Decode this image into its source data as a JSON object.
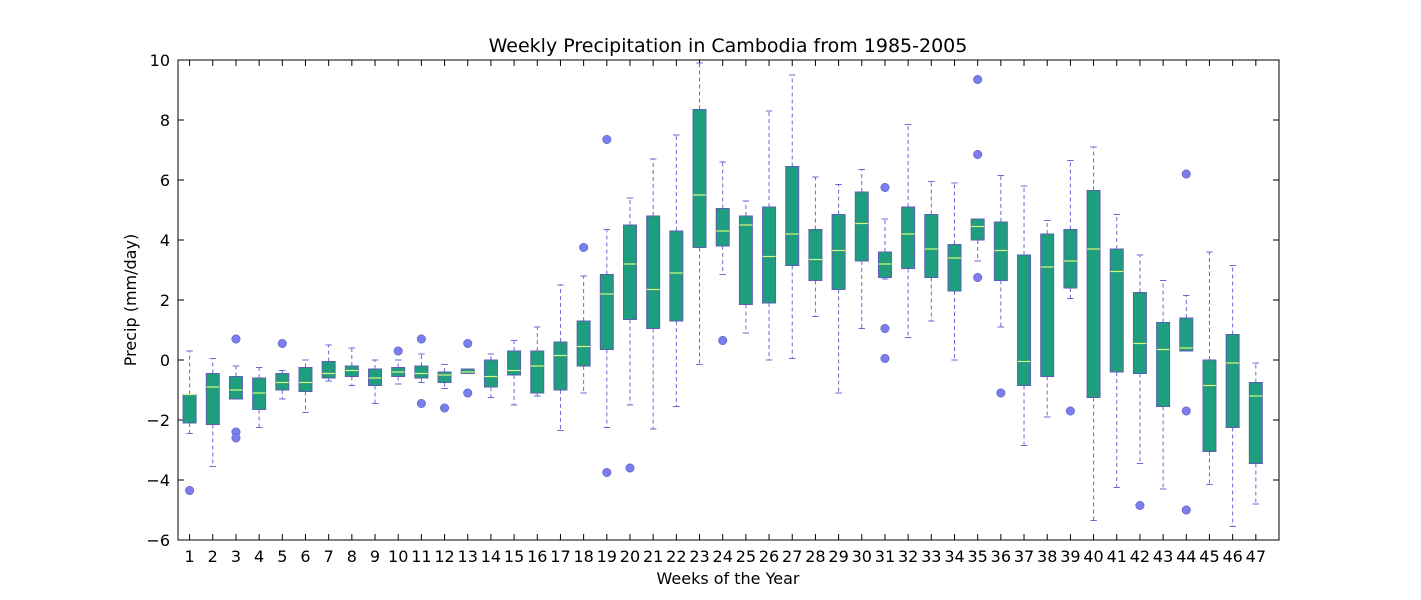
{
  "chart_data": {
    "type": "box",
    "title": "Weekly Precipitation in Cambodia from 1985-2005",
    "xlabel": "Weeks of the Year",
    "ylabel": "Precip (mm/day)",
    "ylim": [
      -6,
      10
    ],
    "yticks": [
      -6,
      -4,
      -2,
      0,
      2,
      4,
      6,
      8,
      10
    ],
    "grid": false,
    "colors": {
      "box_fill": "#1f9e7f",
      "box_edge": "#5b5fb3",
      "median": "#d9f77a",
      "whisker": "#6a6ad8",
      "outlier": "#7b7ef0"
    },
    "categories": [
      "1",
      "2",
      "3",
      "4",
      "5",
      "6",
      "7",
      "8",
      "9",
      "10",
      "11",
      "12",
      "13",
      "14",
      "15",
      "16",
      "17",
      "18",
      "19",
      "20",
      "21",
      "22",
      "23",
      "24",
      "25",
      "26",
      "27",
      "28",
      "29",
      "30",
      "31",
      "32",
      "33",
      "34",
      "35",
      "36",
      "37",
      "38",
      "39",
      "40",
      "41",
      "42",
      "43",
      "44",
      "45",
      "46",
      "47"
    ],
    "boxes": [
      {
        "whislo": -2.45,
        "q1": -2.1,
        "med": -1.15,
        "q3": -1.15,
        "whishi": 0.3,
        "fliers": [
          -4.35
        ]
      },
      {
        "whislo": -3.55,
        "q1": -2.15,
        "med": -0.9,
        "q3": -0.45,
        "whishi": 0.05,
        "fliers": []
      },
      {
        "whislo": -1.3,
        "q1": -1.3,
        "med": -1.0,
        "q3": -0.55,
        "whishi": -0.2,
        "fliers": [
          -2.4,
          -2.6,
          0.7
        ]
      },
      {
        "whislo": -2.25,
        "q1": -1.65,
        "med": -1.1,
        "q3": -0.6,
        "whishi": -0.25,
        "fliers": []
      },
      {
        "whislo": -1.3,
        "q1": -1.0,
        "med": -0.75,
        "q3": -0.45,
        "whishi": -0.35,
        "fliers": [
          0.55
        ]
      },
      {
        "whislo": -1.75,
        "q1": -1.05,
        "med": -0.75,
        "q3": -0.25,
        "whishi": 0.0,
        "fliers": []
      },
      {
        "whislo": -0.7,
        "q1": -0.6,
        "med": -0.45,
        "q3": -0.05,
        "whishi": 0.5,
        "fliers": []
      },
      {
        "whislo": -0.85,
        "q1": -0.55,
        "med": -0.35,
        "q3": -0.2,
        "whishi": 0.4,
        "fliers": []
      },
      {
        "whislo": -1.45,
        "q1": -0.85,
        "med": -0.6,
        "q3": -0.3,
        "whishi": 0.0,
        "fliers": []
      },
      {
        "whislo": -0.8,
        "q1": -0.55,
        "med": -0.4,
        "q3": -0.25,
        "whishi": 0.0,
        "fliers": [
          0.3
        ]
      },
      {
        "whislo": -0.75,
        "q1": -0.6,
        "med": -0.45,
        "q3": -0.2,
        "whishi": 0.2,
        "fliers": [
          -1.45,
          0.7
        ]
      },
      {
        "whislo": -0.95,
        "q1": -0.75,
        "med": -0.5,
        "q3": -0.4,
        "whishi": -0.15,
        "fliers": [
          -1.6
        ]
      },
      {
        "whislo": -0.45,
        "q1": -0.45,
        "med": -0.4,
        "q3": -0.3,
        "whishi": -0.3,
        "fliers": [
          -1.1,
          0.55
        ]
      },
      {
        "whislo": -1.25,
        "q1": -0.9,
        "med": -0.55,
        "q3": 0.0,
        "whishi": 0.2,
        "fliers": []
      },
      {
        "whislo": -1.5,
        "q1": -0.5,
        "med": -0.35,
        "q3": 0.3,
        "whishi": 0.65,
        "fliers": []
      },
      {
        "whislo": -1.2,
        "q1": -1.1,
        "med": -0.2,
        "q3": 0.3,
        "whishi": 1.1,
        "fliers": []
      },
      {
        "whislo": -2.35,
        "q1": -1.0,
        "med": 0.15,
        "q3": 0.6,
        "whishi": 2.5,
        "fliers": []
      },
      {
        "whislo": -1.1,
        "q1": -0.2,
        "med": 0.45,
        "q3": 1.3,
        "whishi": 2.8,
        "fliers": [
          3.75
        ]
      },
      {
        "whislo": -2.25,
        "q1": 0.35,
        "med": 2.2,
        "q3": 2.85,
        "whishi": 4.35,
        "fliers": [
          7.35,
          -3.75
        ]
      },
      {
        "whislo": -1.5,
        "q1": 1.35,
        "med": 3.2,
        "q3": 4.5,
        "whishi": 5.4,
        "fliers": [
          -3.6
        ]
      },
      {
        "whislo": -2.3,
        "q1": 1.05,
        "med": 2.35,
        "q3": 4.8,
        "whishi": 6.7,
        "fliers": []
      },
      {
        "whislo": -1.55,
        "q1": 1.3,
        "med": 2.9,
        "q3": 4.3,
        "whishi": 7.5,
        "fliers": []
      },
      {
        "whislo": -0.15,
        "q1": 3.75,
        "med": 5.5,
        "q3": 8.35,
        "whishi": 9.9,
        "fliers": []
      },
      {
        "whislo": 2.85,
        "q1": 3.8,
        "med": 4.3,
        "q3": 5.05,
        "whishi": 6.6,
        "fliers": [
          0.65
        ]
      },
      {
        "whislo": 0.9,
        "q1": 1.85,
        "med": 4.5,
        "q3": 4.8,
        "whishi": 5.3,
        "fliers": []
      },
      {
        "whislo": 0.0,
        "q1": 1.9,
        "med": 3.45,
        "q3": 5.1,
        "whishi": 8.3,
        "fliers": []
      },
      {
        "whislo": 0.05,
        "q1": 3.15,
        "med": 4.2,
        "q3": 6.45,
        "whishi": 9.5,
        "fliers": []
      },
      {
        "whislo": 1.45,
        "q1": 2.65,
        "med": 3.35,
        "q3": 4.35,
        "whishi": 6.1,
        "fliers": []
      },
      {
        "whislo": -1.1,
        "q1": 2.35,
        "med": 3.65,
        "q3": 4.85,
        "whishi": 5.85,
        "fliers": []
      },
      {
        "whislo": 1.05,
        "q1": 3.3,
        "med": 4.55,
        "q3": 5.6,
        "whishi": 6.35,
        "fliers": []
      },
      {
        "whislo": 2.7,
        "q1": 2.75,
        "med": 3.2,
        "q3": 3.6,
        "whishi": 4.7,
        "fliers": [
          5.75,
          1.05,
          0.05
        ]
      },
      {
        "whislo": 0.75,
        "q1": 3.05,
        "med": 4.2,
        "q3": 5.1,
        "whishi": 7.85,
        "fliers": []
      },
      {
        "whislo": 1.3,
        "q1": 2.75,
        "med": 3.7,
        "q3": 4.85,
        "whishi": 5.95,
        "fliers": []
      },
      {
        "whislo": 0.0,
        "q1": 2.3,
        "med": 3.4,
        "q3": 3.85,
        "whishi": 5.9,
        "fliers": []
      },
      {
        "whislo": 3.3,
        "q1": 4.0,
        "med": 4.45,
        "q3": 4.7,
        "whishi": 4.7,
        "fliers": [
          9.35,
          6.85,
          2.75
        ]
      },
      {
        "whislo": 1.1,
        "q1": 2.65,
        "med": 3.65,
        "q3": 4.6,
        "whishi": 6.15,
        "fliers": [
          -1.1
        ]
      },
      {
        "whislo": -2.85,
        "q1": -0.85,
        "med": -0.05,
        "q3": 3.5,
        "whishi": 5.8,
        "fliers": []
      },
      {
        "whislo": -1.9,
        "q1": -0.55,
        "med": 3.1,
        "q3": 4.2,
        "whishi": 4.65,
        "fliers": []
      },
      {
        "whislo": 2.05,
        "q1": 2.4,
        "med": 3.3,
        "q3": 4.35,
        "whishi": 6.65,
        "fliers": [
          -1.7
        ]
      },
      {
        "whislo": -5.35,
        "q1": -1.25,
        "med": 3.7,
        "q3": 5.65,
        "whishi": 7.1,
        "fliers": []
      },
      {
        "whislo": -4.25,
        "q1": -0.4,
        "med": 2.95,
        "q3": 3.7,
        "whishi": 4.85,
        "fliers": []
      },
      {
        "whislo": -3.45,
        "q1": -0.45,
        "med": 0.55,
        "q3": 2.25,
        "whishi": 3.5,
        "fliers": [
          -4.85
        ]
      },
      {
        "whislo": -4.3,
        "q1": -1.55,
        "med": 0.35,
        "q3": 1.25,
        "whishi": 2.65,
        "fliers": []
      },
      {
        "whislo": 0.3,
        "q1": 0.3,
        "med": 0.4,
        "q3": 1.4,
        "whishi": 2.15,
        "fliers": [
          6.2,
          -1.7,
          -5.0
        ]
      },
      {
        "whislo": -4.15,
        "q1": -3.05,
        "med": -0.85,
        "q3": 0.0,
        "whishi": 3.6,
        "fliers": []
      },
      {
        "whislo": -5.55,
        "q1": -2.25,
        "med": -0.1,
        "q3": 0.85,
        "whishi": 3.15,
        "fliers": []
      },
      {
        "whislo": -4.8,
        "q1": -3.45,
        "med": -1.2,
        "q3": -0.75,
        "whishi": -0.1,
        "fliers": []
      }
    ]
  }
}
